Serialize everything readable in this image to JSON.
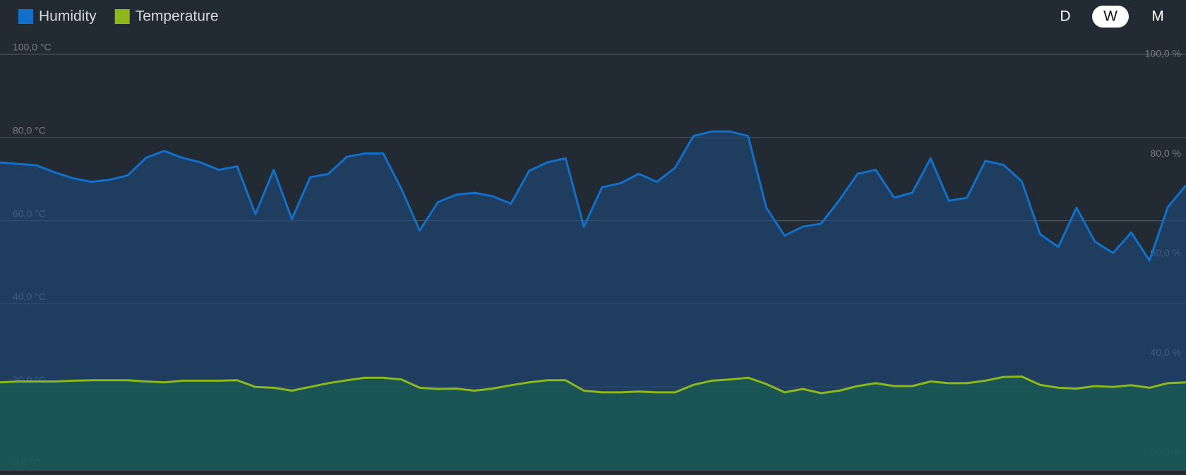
{
  "chart_data": {
    "type": "line",
    "categories": [
      null,
      null,
      null,
      null,
      null,
      null,
      null,
      null,
      null,
      null,
      null,
      null,
      null,
      null,
      null,
      null,
      null,
      null,
      null,
      null,
      null,
      null,
      null,
      null,
      null,
      null,
      null,
      null,
      null,
      null,
      null,
      null,
      null,
      null,
      null,
      null,
      null,
      null,
      null,
      null,
      null,
      null,
      null,
      null,
      null,
      null,
      null,
      null,
      null,
      null,
      null,
      null,
      null,
      null,
      null,
      null,
      null,
      null,
      null,
      null,
      null,
      null,
      null,
      null,
      null,
      null
    ],
    "series": [
      {
        "name": "Humidity",
        "color": "#1170c9",
        "axis": "y2",
        "values": [
          78.3,
          78.0,
          77.7,
          76.3,
          75.1,
          74.4,
          74.8,
          75.7,
          79.2,
          80.6,
          79.2,
          78.3,
          76.8,
          77.5,
          67.9,
          76.8,
          66.9,
          75.3,
          76.0,
          79.4,
          80.1,
          80.1,
          73.0,
          64.6,
          70.3,
          71.8,
          72.2,
          71.5,
          70.0,
          76.6,
          78.3,
          79.1,
          65.4,
          73.3,
          74.1,
          76.0,
          74.4,
          77.2,
          83.6,
          84.5,
          84.5,
          83.6,
          69.2,
          63.6,
          65.4,
          66.0,
          70.7,
          76.0,
          76.8,
          71.2,
          72.2,
          79.1,
          70.6,
          71.2,
          78.6,
          77.8,
          74.5,
          63.9,
          61.3,
          69.2,
          62.4,
          60.1,
          64.2,
          58.6,
          69.3,
          73.7
        ]
      },
      {
        "name": "Temperature",
        "color": "#8cb81b",
        "values": [
          21.1,
          21.3,
          21.3,
          21.3,
          21.5,
          21.6,
          21.6,
          21.6,
          21.3,
          21.1,
          21.5,
          21.5,
          21.5,
          21.6,
          20.0,
          19.8,
          19.1,
          20.0,
          20.9,
          21.6,
          22.2,
          22.2,
          21.8,
          19.8,
          19.5,
          19.6,
          19.1,
          19.6,
          20.4,
          21.1,
          21.6,
          21.6,
          19.1,
          18.7,
          18.7,
          18.9,
          18.7,
          18.7,
          20.5,
          21.5,
          21.8,
          22.2,
          20.7,
          18.7,
          19.5,
          18.5,
          19.1,
          20.2,
          20.9,
          20.2,
          20.2,
          21.3,
          20.9,
          20.9,
          21.5,
          22.4,
          22.5,
          20.5,
          19.8,
          19.6,
          20.2,
          20.0,
          20.4,
          19.8,
          20.9,
          21.1
        ]
      }
    ],
    "ylim": [
      0,
      100
    ],
    "yticks": [
      {
        "value": 0,
        "label": "0,0 °C"
      },
      {
        "value": 20,
        "label": "20,0 °C"
      },
      {
        "value": 40,
        "label": "40,0 °C"
      },
      {
        "value": 60,
        "label": "60,0 °C"
      },
      {
        "value": 80,
        "label": "80,0 °C"
      },
      {
        "value": 100,
        "label": "100,0 °C"
      }
    ],
    "y2lim": [
      16.5,
      100
    ],
    "y2ticks": [
      {
        "value": 20,
        "label": "20,0 %"
      },
      {
        "value": 40,
        "label": "40,0 %"
      },
      {
        "value": 60,
        "label": "60,0 %"
      },
      {
        "value": 80,
        "label": "80,0 %"
      },
      {
        "value": 100,
        "label": "100,0 %"
      }
    ],
    "grid": true,
    "legend": "top-left",
    "range_buttons": [
      "D",
      "W",
      "M"
    ],
    "selected_range": "W"
  }
}
